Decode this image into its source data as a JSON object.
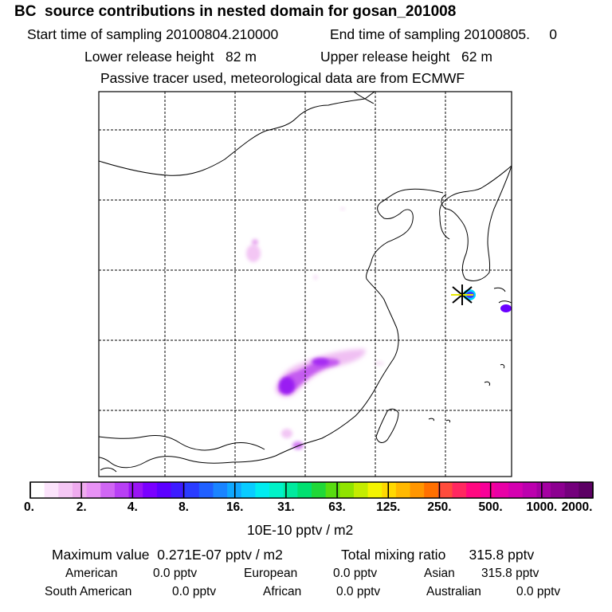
{
  "header": {
    "title": "BC  source contributions in nested domain for gosan_201008",
    "start_label": "Start time of sampling 20100804.210000",
    "end_label": "End time of sampling 20100805.     0",
    "lower_label": "Lower release height   82 m",
    "upper_label": "Upper release height   62 m",
    "tracer_note": "Passive tracer used, meteorological data are from ECMWF"
  },
  "colorbar": {
    "colors": [
      "#ffffff",
      "#fbe3fb",
      "#f5c7f5",
      "#efabef",
      "#e892f6",
      "#d066f4",
      "#b840f5",
      "#9a14f5",
      "#7a00ff",
      "#5c00ff",
      "#3d1cff",
      "#2a3cff",
      "#2060ff",
      "#1a84ff",
      "#10a8ff",
      "#08ccff",
      "#00ecf0",
      "#00f2c8",
      "#00ea9e",
      "#00e070",
      "#20d838",
      "#58dc10",
      "#90e400",
      "#c4ec00",
      "#f4f400",
      "#ffd800",
      "#ffb800",
      "#ff9600",
      "#ff7000",
      "#ff4c3c",
      "#ff2860",
      "#ff0880",
      "#f80098",
      "#e800a6",
      "#d400b0",
      "#bc00ae",
      "#a400a2",
      "#8c0090",
      "#74007c",
      "#5c0064"
    ],
    "tick_labels": [
      "0.",
      "2.",
      "4.",
      "8.",
      "16.",
      "31.",
      "63.",
      "125.",
      "250.",
      "500.",
      "1000.",
      "2000."
    ],
    "units": "10E-10 pptv / m2"
  },
  "chart_data": {
    "type": "heatmap",
    "title": "BC  source contributions in nested domain for gosan_201008",
    "xlabel": "",
    "ylabel": "",
    "color_scale": [
      0,
      2,
      4,
      8,
      16,
      31,
      63,
      125,
      250,
      500,
      1000,
      2000
    ],
    "units": "10E-10 pptv / m2",
    "grid": true,
    "grid_columns": 6,
    "grid_rows": 6,
    "receptor": "gosan"
  },
  "footer": {
    "max_label": "Maximum value  0.271E-07 pptv / m2",
    "total_label": "Total mixing ratio      315.8 pptv",
    "american_label": "American",
    "american_value": "0.0 pptv",
    "european_label": "European",
    "european_value": "0.0 pptv",
    "asian_label": "Asian",
    "asian_value": "315.8 pptv",
    "south_american_label": "South American",
    "south_american_value": "0.0 pptv",
    "african_label": "African",
    "african_value": "0.0 pptv",
    "australian_label": "Australian",
    "australian_value": "0.0 pptv"
  }
}
